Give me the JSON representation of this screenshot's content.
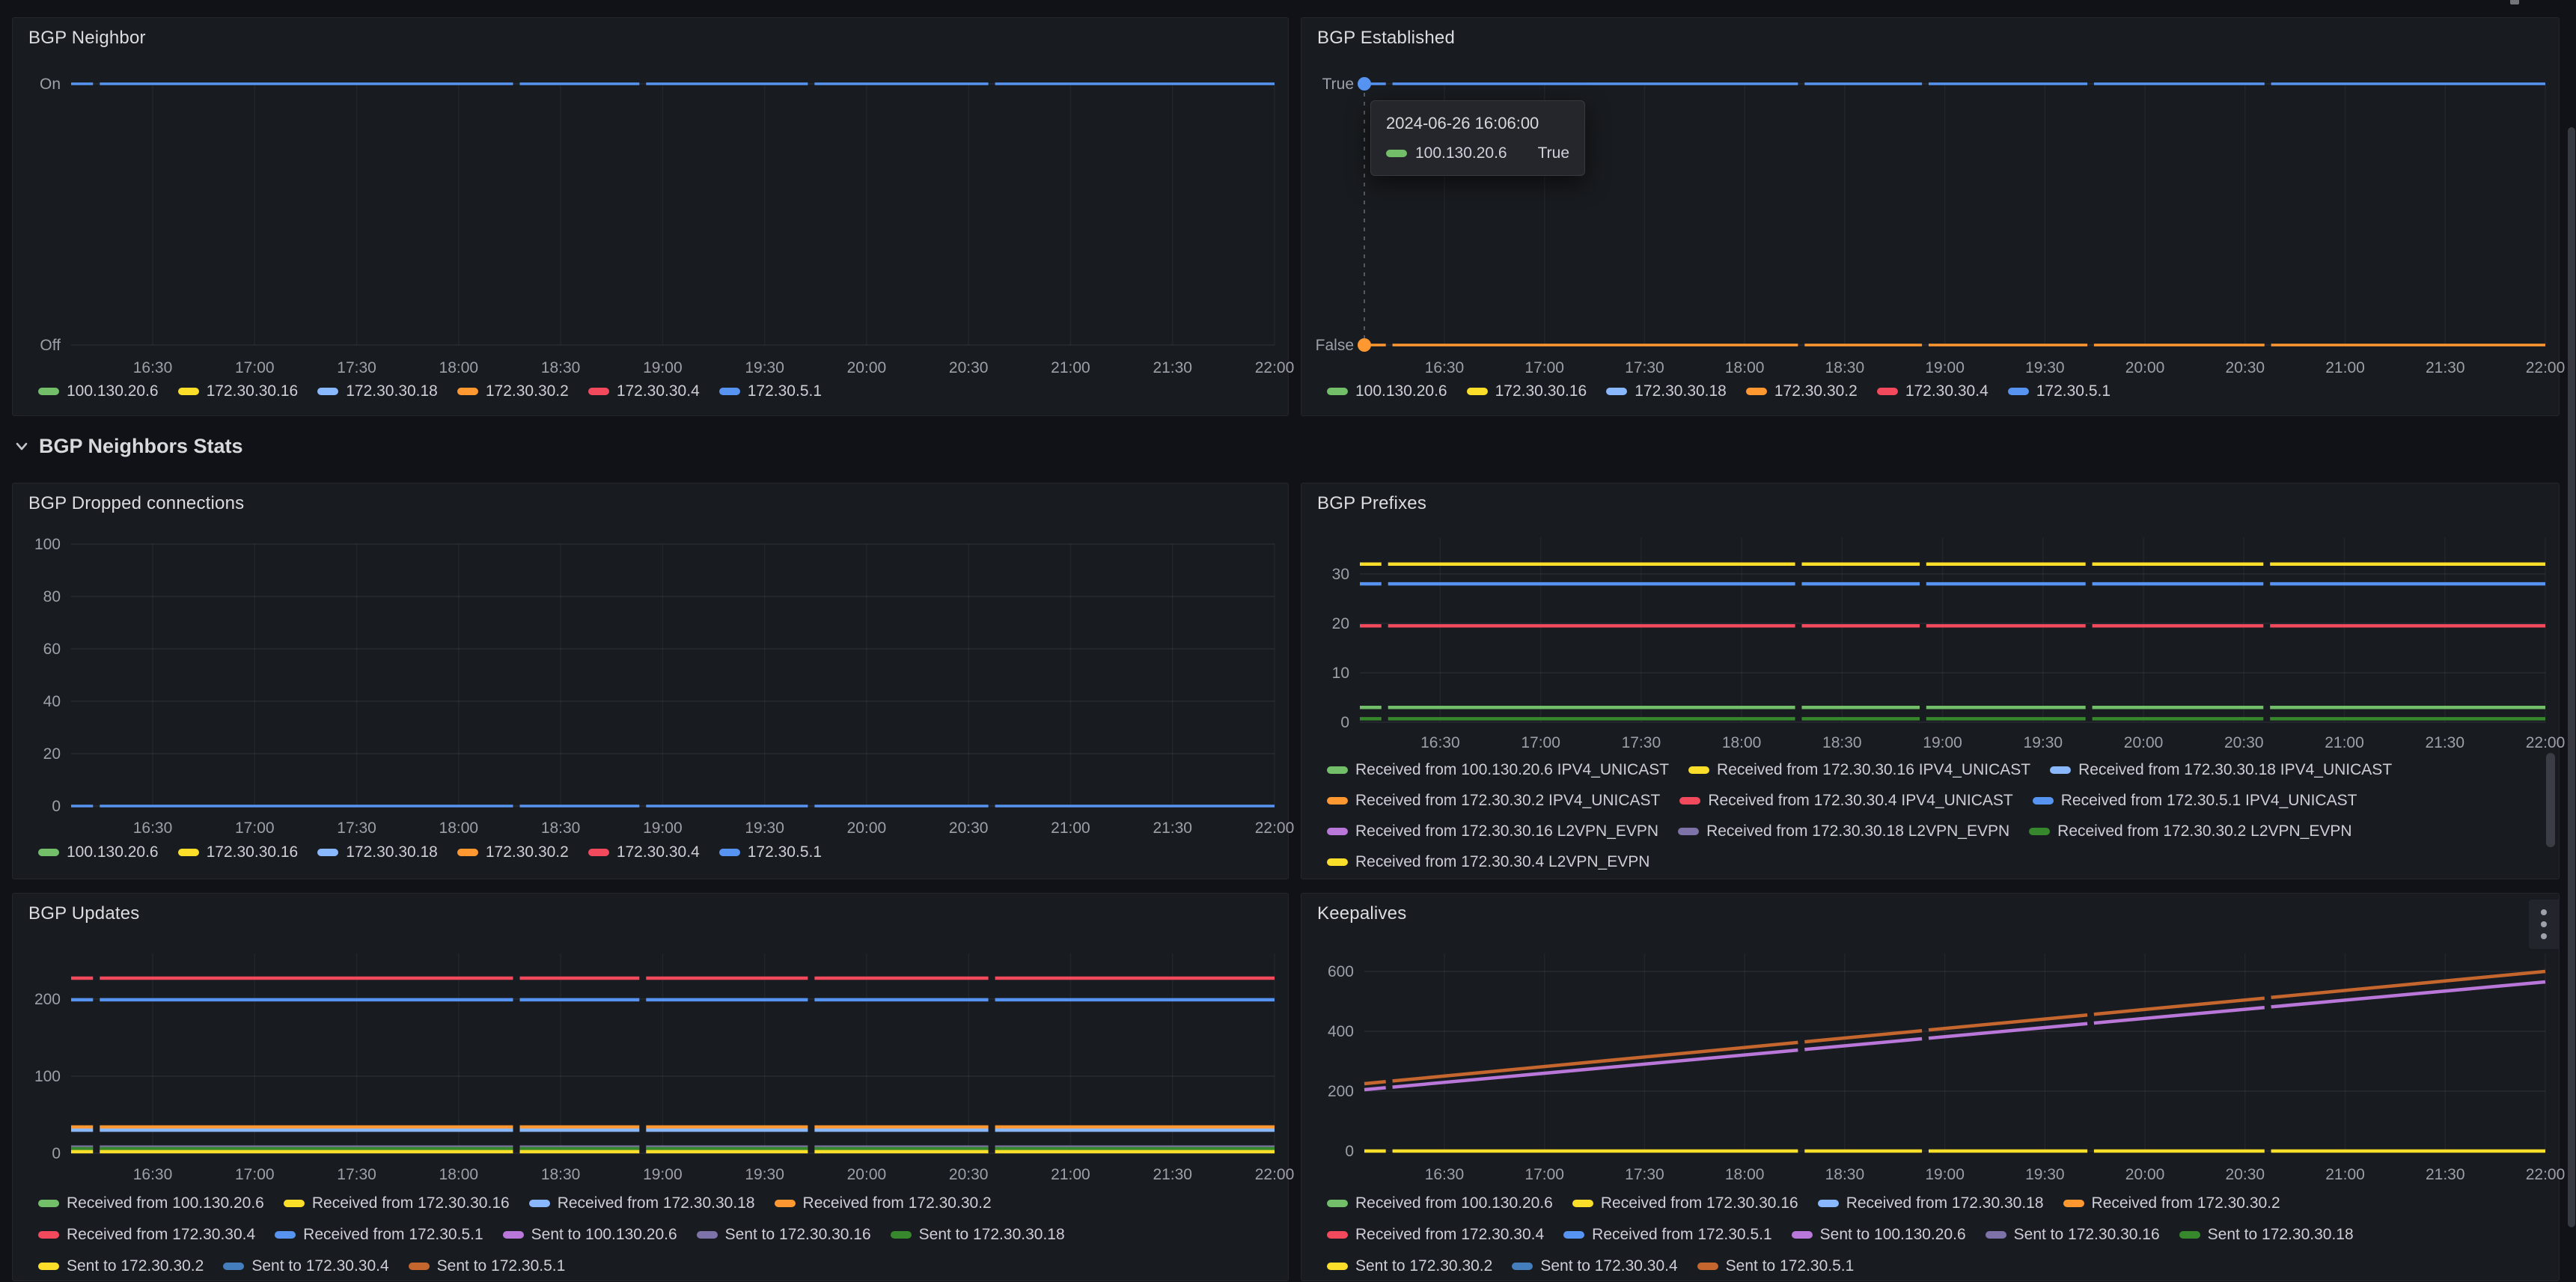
{
  "section": {
    "title": "BGP Neighbors Stats"
  },
  "icons": {
    "section_chevron": "chevron-down",
    "panel_menu": "kebab-vertical"
  },
  "tooltip": {
    "timestamp": "2024-06-26 16:06:00",
    "series_label": "100.130.20.6",
    "value": "True",
    "swatch_color": "#73BF69"
  },
  "chart_data": [
    {
      "id": "bgp-neighbor",
      "type": "line",
      "title": "BGP Neighbor",
      "y_type": "bool",
      "yticks": [
        {
          "v": 1,
          "label": "On"
        },
        {
          "v": 0,
          "label": "Off"
        }
      ],
      "x_ticks": [
        "16:30",
        "17:00",
        "17:30",
        "18:00",
        "18:30",
        "19:00",
        "19:30",
        "20:00",
        "20:30",
        "21:00",
        "21:30",
        "22:00"
      ],
      "time_range": [
        "16:06",
        "22:00"
      ],
      "series": [
        {
          "name": "100.130.20.6",
          "color": "#73BF69",
          "value": "On"
        },
        {
          "name": "172.30.30.16",
          "color": "#FADE2A",
          "value": "On"
        },
        {
          "name": "172.30.30.18",
          "color": "#8AB8FF",
          "value": "On"
        },
        {
          "name": "172.30.30.2",
          "color": "#FF9830",
          "value": "On"
        },
        {
          "name": "172.30.30.4",
          "color": "#F2495C",
          "value": "On"
        },
        {
          "name": "172.30.5.1",
          "color": "#5794F2",
          "value": "On"
        }
      ],
      "drawn_lines": [
        {
          "color": "#5794F2",
          "v": 1
        }
      ],
      "legend_rows": [
        [
          {
            "label": "100.130.20.6",
            "color": "#73BF69"
          },
          {
            "label": "172.30.30.16",
            "color": "#FADE2A"
          },
          {
            "label": "172.30.30.18",
            "color": "#8AB8FF"
          },
          {
            "label": "172.30.30.2",
            "color": "#FF9830"
          },
          {
            "label": "172.30.30.4",
            "color": "#F2495C"
          },
          {
            "label": "172.30.5.1",
            "color": "#5794F2"
          }
        ]
      ]
    },
    {
      "id": "bgp-established",
      "type": "line",
      "title": "BGP Established",
      "y_type": "bool",
      "yticks": [
        {
          "v": 1,
          "label": "True"
        },
        {
          "v": 0,
          "label": "False"
        }
      ],
      "x_ticks": [
        "16:30",
        "17:00",
        "17:30",
        "18:00",
        "18:30",
        "19:00",
        "19:30",
        "20:00",
        "20:30",
        "21:00",
        "21:30",
        "22:00"
      ],
      "time_range": [
        "16:06",
        "22:00"
      ],
      "series": [
        {
          "name": "100.130.20.6",
          "color": "#73BF69",
          "value": "True"
        },
        {
          "name": "172.30.30.16",
          "color": "#FADE2A",
          "value": "True"
        },
        {
          "name": "172.30.30.18",
          "color": "#8AB8FF",
          "value": "True"
        },
        {
          "name": "172.30.30.2",
          "color": "#FF9830",
          "value": "False"
        },
        {
          "name": "172.30.30.4",
          "color": "#F2495C",
          "value": "True"
        },
        {
          "name": "172.30.5.1",
          "color": "#5794F2",
          "value": "True"
        }
      ],
      "drawn_lines": [
        {
          "color": "#5794F2",
          "v": 1
        },
        {
          "color": "#FF9830",
          "v": 0
        }
      ],
      "markers": [
        {
          "color": "#5794F2",
          "v": 1
        },
        {
          "color": "#FF9830",
          "v": 0
        }
      ],
      "crosshair": true,
      "legend_rows": [
        [
          {
            "label": "100.130.20.6",
            "color": "#73BF69"
          },
          {
            "label": "172.30.30.16",
            "color": "#FADE2A"
          },
          {
            "label": "172.30.30.18",
            "color": "#8AB8FF"
          },
          {
            "label": "172.30.30.2",
            "color": "#FF9830"
          },
          {
            "label": "172.30.30.4",
            "color": "#F2495C"
          },
          {
            "label": "172.30.5.1",
            "color": "#5794F2"
          }
        ]
      ]
    },
    {
      "id": "bgp-dropped-connections",
      "type": "line",
      "title": "BGP Dropped connections",
      "y_type": "number",
      "ylim": [
        0,
        100
      ],
      "yticks": [
        {
          "v": 100,
          "label": "100"
        },
        {
          "v": 80,
          "label": "80"
        },
        {
          "v": 60,
          "label": "60"
        },
        {
          "v": 40,
          "label": "40"
        },
        {
          "v": 20,
          "label": "20"
        },
        {
          "v": 0,
          "label": "0"
        }
      ],
      "x_ticks": [
        "16:30",
        "17:00",
        "17:30",
        "18:00",
        "18:30",
        "19:00",
        "19:30",
        "20:00",
        "20:30",
        "21:00",
        "21:30",
        "22:00"
      ],
      "time_range": [
        "16:06",
        "22:00"
      ],
      "series": [
        {
          "name": "100.130.20.6",
          "color": "#73BF69",
          "value": 0
        },
        {
          "name": "172.30.30.16",
          "color": "#FADE2A",
          "value": 0
        },
        {
          "name": "172.30.30.18",
          "color": "#8AB8FF",
          "value": 0
        },
        {
          "name": "172.30.30.2",
          "color": "#FF9830",
          "value": 0
        },
        {
          "name": "172.30.30.4",
          "color": "#F2495C",
          "value": 0
        },
        {
          "name": "172.30.5.1",
          "color": "#5794F2",
          "value": 0
        }
      ],
      "drawn_lines": [
        {
          "color": "#5794F2",
          "v": 0
        }
      ],
      "legend_rows": [
        [
          {
            "label": "100.130.20.6",
            "color": "#73BF69"
          },
          {
            "label": "172.30.30.16",
            "color": "#FADE2A"
          },
          {
            "label": "172.30.30.18",
            "color": "#8AB8FF"
          },
          {
            "label": "172.30.30.2",
            "color": "#FF9830"
          },
          {
            "label": "172.30.30.4",
            "color": "#F2495C"
          },
          {
            "label": "172.30.5.1",
            "color": "#5794F2"
          }
        ]
      ]
    },
    {
      "id": "bgp-prefixes",
      "type": "line",
      "title": "BGP Prefixes",
      "y_type": "number",
      "ylim": [
        0,
        37.4
      ],
      "yticks": [
        {
          "v": 30,
          "label": "30"
        },
        {
          "v": 20,
          "label": "20"
        },
        {
          "v": 10,
          "label": "10"
        },
        {
          "v": 0,
          "label": "0"
        }
      ],
      "x_ticks": [
        "16:30",
        "17:00",
        "17:30",
        "18:00",
        "18:30",
        "19:00",
        "19:30",
        "20:00",
        "20:30",
        "21:00",
        "21:30",
        "22:00"
      ],
      "time_range": [
        "16:06",
        "22:00"
      ],
      "drawn_lines": [
        {
          "color": "#FADE2A",
          "v": 32
        },
        {
          "color": "#5794F2",
          "v": 28
        },
        {
          "color": "#F2495C",
          "v": 19.5
        },
        {
          "color": "#73BF69",
          "v": 3
        },
        {
          "color": "#37872D",
          "v": 0.7
        }
      ],
      "legend_rows": [
        [
          {
            "label": "Received from 100.130.20.6 IPV4_UNICAST",
            "color": "#73BF69"
          },
          {
            "label": "Received from 172.30.30.16 IPV4_UNICAST",
            "color": "#FADE2A"
          },
          {
            "label": "Received from 172.30.30.18 IPV4_UNICAST",
            "color": "#8AB8FF"
          }
        ],
        [
          {
            "label": "Received from 172.30.30.2 IPV4_UNICAST",
            "color": "#FF9830"
          },
          {
            "label": "Received from 172.30.30.4 IPV4_UNICAST",
            "color": "#F2495C"
          },
          {
            "label": "Received from 172.30.5.1 IPV4_UNICAST",
            "color": "#5794F2"
          }
        ],
        [
          {
            "label": "Received from 172.30.30.16 L2VPN_EVPN",
            "color": "#B877D9"
          },
          {
            "label": "Received from 172.30.30.18 L2VPN_EVPN",
            "color": "#7D73A8"
          },
          {
            "label": "Received from 172.30.30.2 L2VPN_EVPN",
            "color": "#37872D"
          }
        ],
        [
          {
            "label": "Received from 172.30.30.4 L2VPN_EVPN",
            "color": "#FADE2A"
          }
        ]
      ]
    },
    {
      "id": "bgp-updates",
      "type": "line",
      "title": "BGP Updates",
      "y_type": "number",
      "ylim": [
        0,
        259
      ],
      "yticks": [
        {
          "v": 200,
          "label": "200"
        },
        {
          "v": 100,
          "label": "100"
        },
        {
          "v": 0,
          "label": "0"
        }
      ],
      "x_ticks": [
        "16:30",
        "17:00",
        "17:30",
        "18:00",
        "18:30",
        "19:00",
        "19:30",
        "20:00",
        "20:30",
        "21:00",
        "21:30",
        "22:00"
      ],
      "time_range": [
        "16:06",
        "22:00"
      ],
      "drawn_lines": [
        {
          "color": "#F2495C",
          "v": 227
        },
        {
          "color": "#5794F2",
          "v": 199
        },
        {
          "color": "#FF9830",
          "v": 34
        },
        {
          "color": "#8AB8FF",
          "v": 30
        },
        {
          "color": "#7D73A8",
          "v": 8
        },
        {
          "color": "#37872D",
          "v": 6
        },
        {
          "color": "#FADE2A",
          "v": 2
        }
      ],
      "legend_rows": [
        [
          {
            "label": "Received from 100.130.20.6",
            "color": "#73BF69"
          },
          {
            "label": "Received from 172.30.30.16",
            "color": "#FADE2A"
          },
          {
            "label": "Received from 172.30.30.18",
            "color": "#8AB8FF"
          },
          {
            "label": "Received from 172.30.30.2",
            "color": "#FF9830"
          }
        ],
        [
          {
            "label": "Received from 172.30.30.4",
            "color": "#F2495C"
          },
          {
            "label": "Received from 172.30.5.1",
            "color": "#5794F2"
          },
          {
            "label": "Sent to 100.130.20.6",
            "color": "#B877D9"
          },
          {
            "label": "Sent to 172.30.30.16",
            "color": "#7D73A8"
          },
          {
            "label": "Sent to 172.30.30.18",
            "color": "#37872D"
          }
        ],
        [
          {
            "label": "Sent to 172.30.30.2",
            "color": "#FADE2A"
          },
          {
            "label": "Sent to 172.30.30.4",
            "color": "#447EBC"
          },
          {
            "label": "Sent to 172.30.5.1",
            "color": "#C4662D"
          }
        ]
      ]
    },
    {
      "id": "keepalives",
      "type": "line",
      "title": "Keepalives",
      "y_type": "number",
      "ylim": [
        0,
        660
      ],
      "yticks": [
        {
          "v": 600,
          "label": "600"
        },
        {
          "v": 400,
          "label": "400"
        },
        {
          "v": 200,
          "label": "200"
        },
        {
          "v": 0,
          "label": "0"
        }
      ],
      "x_ticks": [
        "16:30",
        "17:00",
        "17:30",
        "18:00",
        "18:30",
        "19:00",
        "19:30",
        "20:00",
        "20:30",
        "21:00",
        "21:30",
        "22:00"
      ],
      "time_range": [
        "16:06",
        "22:00"
      ],
      "drawn_lines": [
        {
          "color": "#C4662D",
          "v0": 225,
          "v1": 600
        },
        {
          "color": "#B877D9",
          "v0": 205,
          "v1": 565
        },
        {
          "color": "#FADE2A",
          "v": 0
        }
      ],
      "legend_rows": [
        [
          {
            "label": "Received from 100.130.20.6",
            "color": "#73BF69"
          },
          {
            "label": "Received from 172.30.30.16",
            "color": "#FADE2A"
          },
          {
            "label": "Received from 172.30.30.18",
            "color": "#8AB8FF"
          },
          {
            "label": "Received from 172.30.30.2",
            "color": "#FF9830"
          }
        ],
        [
          {
            "label": "Received from 172.30.30.4",
            "color": "#F2495C"
          },
          {
            "label": "Received from 172.30.5.1",
            "color": "#5794F2"
          },
          {
            "label": "Sent to 100.130.20.6",
            "color": "#B877D9"
          },
          {
            "label": "Sent to 172.30.30.16",
            "color": "#7D73A8"
          },
          {
            "label": "Sent to 172.30.30.18",
            "color": "#37872D"
          }
        ],
        [
          {
            "label": "Sent to 172.30.30.2",
            "color": "#FADE2A"
          },
          {
            "label": "Sent to 172.30.30.4",
            "color": "#447EBC"
          },
          {
            "label": "Sent to 172.30.5.1",
            "color": "#C4662D"
          }
        ]
      ]
    }
  ]
}
